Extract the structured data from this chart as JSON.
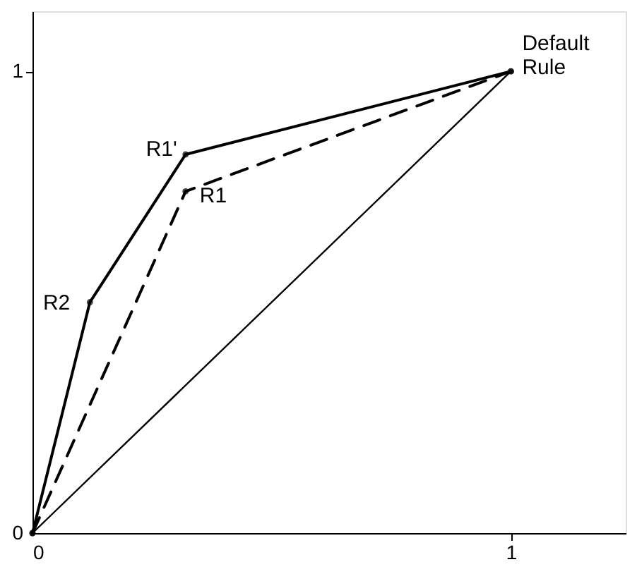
{
  "chart_data": {
    "type": "line",
    "series": [
      {
        "color": "#000000",
        "x": [
          0,
          0.12,
          0.32,
          1
        ],
        "values": [
          0,
          0.5,
          0.82,
          1
        ],
        "line_style": "solid",
        "marker": "circle"
      },
      {
        "color": "#000000",
        "x": [
          0,
          0.32,
          1
        ],
        "values": [
          0,
          0.74,
          1
        ],
        "line_style": "dashed",
        "marker": "circle"
      },
      {
        "color": "#000000",
        "x": [
          0,
          1
        ],
        "values": [
          0,
          1
        ],
        "line_style": "solid",
        "marker": "none"
      }
    ],
    "annotations": [
      {
        "text": "R2",
        "x": 0.12,
        "y": 0.5
      },
      {
        "text": "R1'",
        "x": 0.32,
        "y": 0.82
      },
      {
        "text": "R1",
        "x": 0.32,
        "y": 0.74
      },
      {
        "text": "Default Rule",
        "x": 1,
        "y": 1
      }
    ],
    "xlim": [
      0,
      1.24
    ],
    "ylim": [
      0,
      1.13
    ],
    "xticks": [
      0,
      1
    ],
    "yticks": [
      0,
      1
    ],
    "grid": false
  }
}
